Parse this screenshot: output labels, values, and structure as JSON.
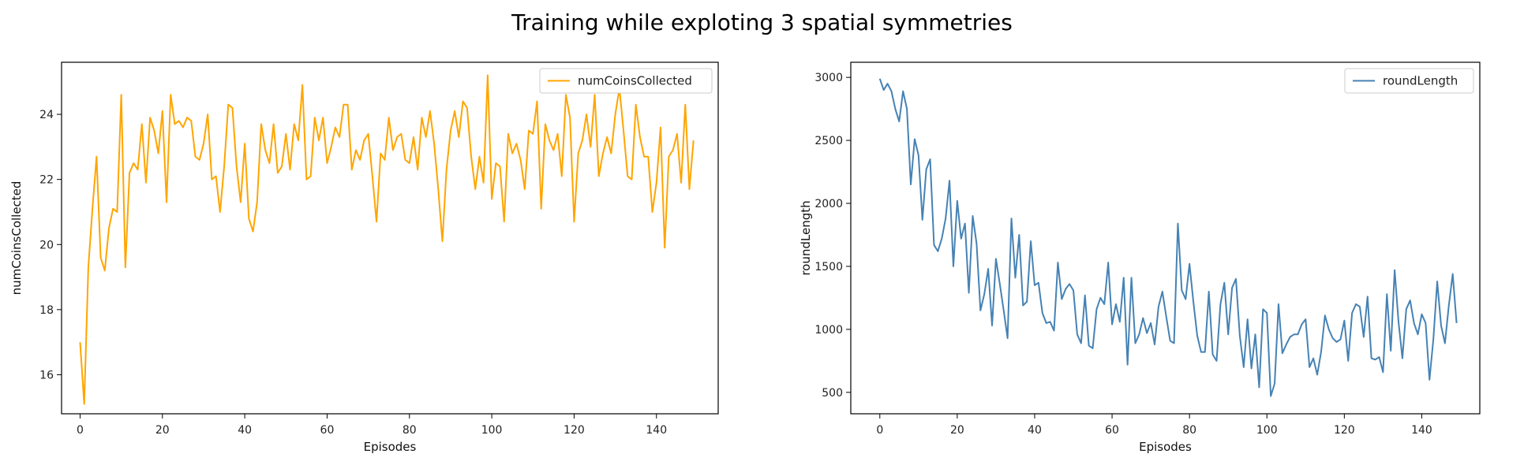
{
  "figure": {
    "title": "Training while exploting 3 spatial symmetries"
  },
  "chart_data": [
    {
      "type": "line",
      "xlabel": "Episodes",
      "ylabel": "numCoinsCollected",
      "xlim": [
        -4.5,
        155
      ],
      "ylim": [
        14.8,
        25.6
      ],
      "xticks": [
        0,
        20,
        40,
        60,
        80,
        100,
        120,
        140
      ],
      "yticks": [
        16,
        18,
        20,
        22,
        24
      ],
      "grid": false,
      "legend": "top-right",
      "series": [
        {
          "name": "numCoinsCollected",
          "color": "#FFA500",
          "x_start": 0,
          "x_step": 1,
          "values": [
            17.0,
            15.1,
            19.3,
            21.1,
            22.7,
            19.6,
            19.2,
            20.5,
            21.1,
            21.0,
            24.6,
            19.3,
            22.2,
            22.5,
            22.3,
            23.7,
            21.9,
            23.9,
            23.5,
            22.8,
            24.1,
            21.3,
            24.6,
            23.7,
            23.8,
            23.6,
            23.9,
            23.8,
            22.7,
            22.6,
            23.1,
            24.0,
            22.0,
            22.1,
            21.0,
            22.4,
            24.3,
            24.2,
            22.4,
            21.3,
            23.1,
            20.8,
            20.4,
            21.3,
            23.7,
            22.9,
            22.5,
            23.7,
            22.2,
            22.4,
            23.4,
            22.3,
            23.7,
            23.2,
            24.9,
            22.0,
            22.1,
            23.9,
            23.2,
            23.9,
            22.5,
            23.0,
            23.6,
            23.3,
            24.3,
            24.3,
            22.3,
            22.9,
            22.6,
            23.2,
            23.4,
            22.1,
            20.7,
            22.8,
            22.6,
            23.9,
            22.9,
            23.3,
            23.4,
            22.6,
            22.5,
            23.3,
            22.3,
            23.9,
            23.3,
            24.1,
            23.1,
            21.7,
            20.1,
            22.3,
            23.5,
            24.1,
            23.3,
            24.4,
            24.2,
            22.7,
            21.7,
            22.7,
            21.9,
            25.2,
            21.4,
            22.5,
            22.4,
            20.7,
            23.4,
            22.8,
            23.1,
            22.6,
            21.7,
            23.5,
            23.4,
            24.4,
            21.1,
            23.7,
            23.2,
            22.9,
            23.4,
            22.1,
            24.6,
            23.9,
            20.7,
            22.8,
            23.2,
            24.0,
            23.0,
            24.6,
            22.1,
            22.8,
            23.3,
            22.8,
            24.0,
            24.8,
            23.5,
            22.1,
            22.0,
            24.3,
            23.3,
            22.7,
            22.7,
            21.0,
            21.9,
            23.6,
            19.9,
            22.7,
            22.9,
            23.4,
            21.9,
            24.3,
            21.7,
            23.2
          ]
        }
      ]
    },
    {
      "type": "line",
      "xlabel": "Episodes",
      "ylabel": "roundLength",
      "xlim": [
        -7.5,
        155
      ],
      "ylim": [
        330,
        3120
      ],
      "xticks": [
        0,
        20,
        40,
        60,
        80,
        100,
        120,
        140
      ],
      "yticks": [
        500,
        1000,
        1500,
        2000,
        2500,
        3000
      ],
      "grid": false,
      "legend": "top-right",
      "series": [
        {
          "name": "roundLength",
          "color": "#4682B4",
          "x_start": 0,
          "x_step": 1,
          "values": [
            2990,
            2900,
            2950,
            2890,
            2750,
            2650,
            2890,
            2750,
            2150,
            2510,
            2380,
            1870,
            2270,
            2350,
            1670,
            1620,
            1720,
            1880,
            2180,
            1500,
            2020,
            1720,
            1840,
            1290,
            1900,
            1680,
            1150,
            1280,
            1480,
            1030,
            1560,
            1360,
            1150,
            930,
            1880,
            1410,
            1750,
            1190,
            1220,
            1700,
            1350,
            1370,
            1130,
            1050,
            1060,
            990,
            1530,
            1240,
            1320,
            1360,
            1310,
            960,
            890,
            1270,
            870,
            850,
            1160,
            1250,
            1200,
            1530,
            1040,
            1200,
            1060,
            1410,
            720,
            1410,
            890,
            960,
            1090,
            970,
            1050,
            880,
            1180,
            1300,
            1100,
            910,
            890,
            1840,
            1310,
            1240,
            1520,
            1220,
            950,
            820,
            820,
            1300,
            800,
            750,
            1200,
            1370,
            960,
            1330,
            1400,
            950,
            700,
            1080,
            690,
            960,
            540,
            1160,
            1130,
            470,
            570,
            1200,
            810,
            880,
            940,
            960,
            960,
            1040,
            1080,
            700,
            770,
            640,
            820,
            1110,
            1000,
            930,
            900,
            920,
            1070,
            750,
            1130,
            1200,
            1180,
            940,
            1260,
            770,
            760,
            780,
            660,
            1280,
            830,
            1470,
            1060,
            770,
            1160,
            1230,
            1050,
            960,
            1120,
            1050,
            600,
            920,
            1380,
            1030,
            890,
            1190,
            1440,
            1050
          ]
        }
      ]
    }
  ]
}
